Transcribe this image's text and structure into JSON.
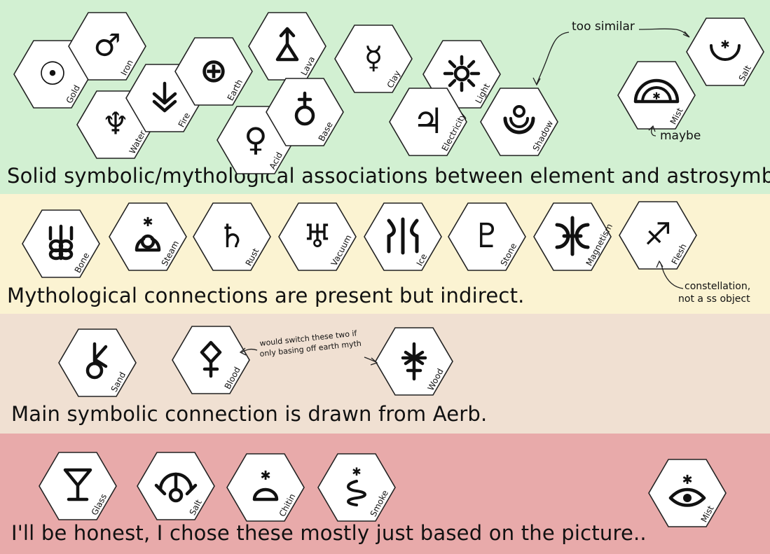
{
  "sections": [
    {
      "caption": "Solid symbolic/mythological associations between element and astrosymbol.",
      "color": "#d2f0d2"
    },
    {
      "caption": "Mythological connections are present but indirect.",
      "color": "#fbf3d2"
    },
    {
      "caption": "Main symbolic connection is drawn from Aerb.",
      "color": "#f0e0d2"
    },
    {
      "caption": "I'll be honest, I chose these mostly just based on the picture..",
      "color": "#e8aaaa"
    }
  ],
  "symbols": {
    "gold": {
      "label": "Gold",
      "glyph": "☉",
      "icon": "sun-symbol"
    },
    "iron": {
      "label": "Iron",
      "glyph": "♂",
      "icon": "mars-symbol"
    },
    "water": {
      "label": "Water",
      "glyph": "♆",
      "icon": "neptune-symbol"
    },
    "fire": {
      "label": "Fire",
      "glyph": "",
      "icon": "fire-chevron-symbol"
    },
    "earth": {
      "label": "Earth",
      "glyph": "⊕",
      "icon": "earth-symbol"
    },
    "lava": {
      "label": "Lava",
      "glyph": "",
      "icon": "lava-triangle-symbol"
    },
    "acid": {
      "label": "Acid",
      "glyph": "♀",
      "icon": "venus-symbol"
    },
    "base": {
      "label": "Base",
      "glyph": "",
      "icon": "base-symbol"
    },
    "clay": {
      "label": "Clay",
      "glyph": "☿",
      "icon": "mercury-symbol"
    },
    "light": {
      "label": "Light",
      "glyph": "",
      "icon": "light-sun-symbol"
    },
    "electricity": {
      "label": "Electricity",
      "glyph": "♃",
      "icon": "jupiter-symbol"
    },
    "shadow": {
      "label": "Shadow",
      "glyph": "",
      "icon": "shadow-symbol"
    },
    "mist1": {
      "label": "Mist",
      "glyph": "",
      "icon": "mist-arc-symbol"
    },
    "salt1": {
      "label": "Salt",
      "glyph": "",
      "icon": "salt-crescent-symbol"
    },
    "bone": {
      "label": "Bone",
      "glyph": "",
      "icon": "bone-symbol"
    },
    "steam": {
      "label": "Steam",
      "glyph": "",
      "icon": "steam-symbol"
    },
    "rust": {
      "label": "Rust",
      "glyph": "♄",
      "icon": "saturn-symbol"
    },
    "vacuum": {
      "label": "Vacuum",
      "glyph": "♅",
      "icon": "uranus-symbol"
    },
    "ice": {
      "label": "Ice",
      "glyph": "",
      "icon": "ice-symbol"
    },
    "stone": {
      "label": "Stone",
      "glyph": "♇",
      "icon": "pluto-symbol"
    },
    "magnetism": {
      "label": "Magnetism",
      "glyph": "",
      "icon": "magnetism-symbol"
    },
    "flesh": {
      "label": "Flesh",
      "glyph": "♐",
      "icon": "sagittarius-symbol"
    },
    "sand": {
      "label": "Sand",
      "glyph": "",
      "icon": "sand-key-symbol"
    },
    "blood": {
      "label": "Blood",
      "glyph": "",
      "icon": "blood-diamond-symbol"
    },
    "wood": {
      "label": "Wood",
      "glyph": "",
      "icon": "wood-asterisk-symbol"
    },
    "glass": {
      "label": "Glass",
      "glyph": "",
      "icon": "glass-goblet-symbol"
    },
    "salt2": {
      "label": "Salt",
      "glyph": "",
      "icon": "salt-arc-symbol"
    },
    "chitin": {
      "label": "Chitin",
      "glyph": "",
      "icon": "chitin-symbol"
    },
    "smoke": {
      "label": "Smoke",
      "glyph": "",
      "icon": "smoke-symbol"
    },
    "mist2": {
      "label": "Mist",
      "glyph": "",
      "icon": "mist-eye-symbol"
    }
  },
  "annotations": {
    "too_similar": "too similar",
    "maybe": "maybe",
    "constellation_1": "constellation,",
    "constellation_2": "not a ss object",
    "switch_1": "would switch these two if",
    "switch_2": "only basing off earth myth"
  }
}
